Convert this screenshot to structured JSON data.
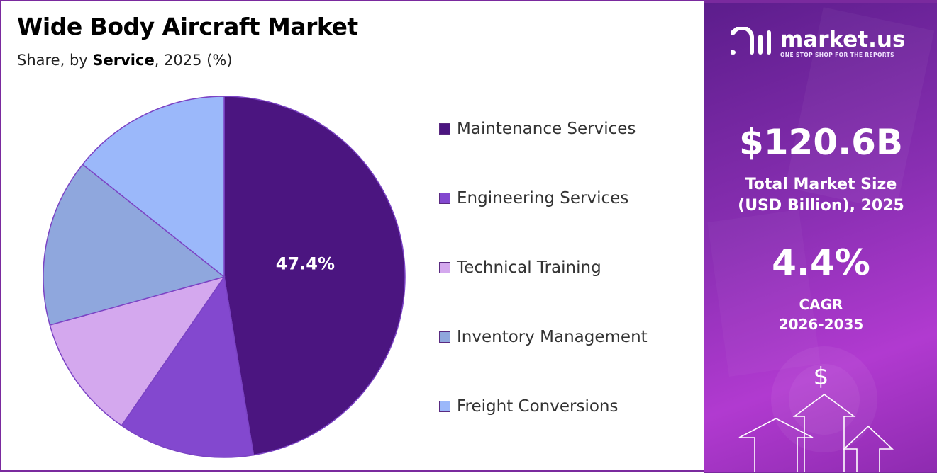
{
  "header": {
    "title": "Wide Body Aircraft Market",
    "subtitle_prefix": "Share, by ",
    "subtitle_emphasis": "Service",
    "subtitle_suffix": ", 2025 (%)"
  },
  "chart_data": {
    "type": "pie",
    "title": "Wide Body Aircraft Market",
    "subtitle": "Share, by Service, 2025 (%)",
    "slices": [
      {
        "label": "Maintenance Services",
        "value": 47.4,
        "color": "#4b1580",
        "show_label": "47.4%"
      },
      {
        "label": "Engineering Services",
        "value": 12.2,
        "color": "#8348cf",
        "show_label": ""
      },
      {
        "label": "Technical Training",
        "value": 11.1,
        "color": "#d4a8ee",
        "show_label": ""
      },
      {
        "label": "Inventory Management",
        "value": 15.0,
        "color": "#8fa7dd",
        "show_label": ""
      },
      {
        "label": "Freight Conversions",
        "value": 14.3,
        "color": "#9bb8fa",
        "show_label": ""
      }
    ],
    "legend_position": "right",
    "start_angle_deg": 0,
    "direction": "clockwise"
  },
  "panel": {
    "brand_name": "market.us",
    "brand_tagline": "ONE STOP SHOP FOR THE REPORTS",
    "market_size": "$120.6B",
    "market_size_label_1": "Total Market Size",
    "market_size_label_2": "(USD Billion), 2025",
    "cagr_value": "4.4%",
    "cagr_label": "CAGR",
    "cagr_period": "2026-2035",
    "dollar_symbol": "$",
    "icons": [
      "logo-icon",
      "dollar-icon",
      "up-arrow-icon"
    ],
    "colors": {
      "accent": "#7a2a9e",
      "panel_top": "#5c1d8c",
      "panel_bottom": "#b13ad0"
    }
  }
}
